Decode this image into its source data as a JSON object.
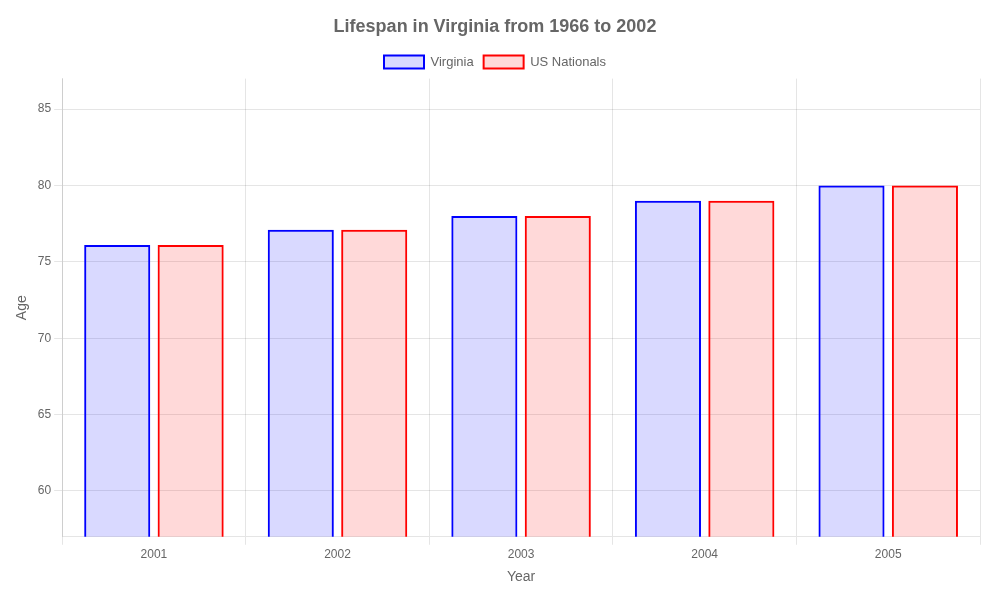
{
  "chart_data": {
    "type": "bar",
    "title": "Lifespan in Virginia from 1966 to 2002",
    "x_label": "Year",
    "y_label": "Age",
    "categories": [
      "2001",
      "2002",
      "2003",
      "2004",
      "2005"
    ],
    "series": [
      {
        "name": "Virginia",
        "color": "#0000ff",
        "values": [
          76.1,
          77.1,
          78.0,
          79.0,
          80.0
        ]
      },
      {
        "name": "US Nationals",
        "color": "#ff0000",
        "values": [
          76.1,
          77.1,
          78.0,
          79.0,
          80.0
        ]
      }
    ],
    "ylim": [
      57,
      87
    ],
    "yticks": [
      60,
      65,
      70,
      75,
      80,
      85
    ],
    "grid": true,
    "legend": "top"
  }
}
